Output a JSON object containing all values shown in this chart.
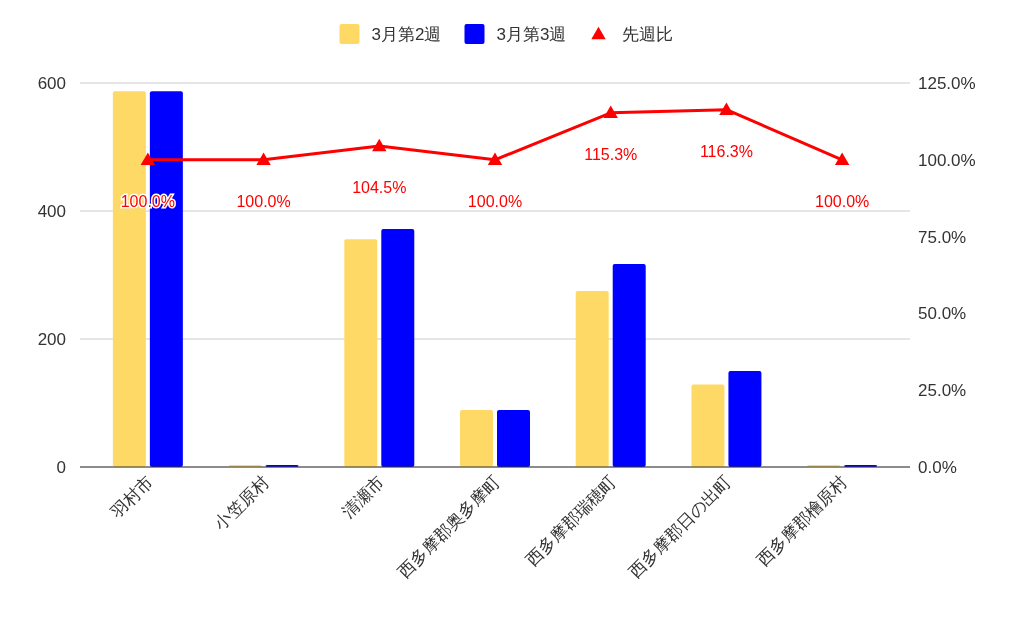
{
  "chart_data": {
    "type": "bar",
    "categories": [
      "羽村市",
      "小笠原村",
      "清瀬市",
      "西多摩郡奥多摩町",
      "西多摩郡瑞穂町",
      "西多摩郡日の出町",
      "西多摩郡檜原村"
    ],
    "series": [
      {
        "name": "3月第2週",
        "color": "#ffd966",
        "values": [
          587,
          3,
          356,
          89,
          275,
          129,
          3
        ]
      },
      {
        "name": "3月第3週",
        "color": "#0000ff",
        "values": [
          587,
          3,
          372,
          89,
          317,
          150,
          3
        ]
      },
      {
        "name": "先週比",
        "type": "line",
        "axis": "y2",
        "color": "#ff0000",
        "marker": "triangle",
        "values": [
          100.0,
          100.0,
          104.5,
          100.0,
          115.3,
          116.3,
          100.0
        ],
        "value_labels": [
          "100.0%",
          "100.0%",
          "104.5%",
          "100.0%",
          "115.3%",
          "116.3%",
          "100.0%"
        ]
      }
    ],
    "ylim": [
      0,
      600
    ],
    "yticks": [
      0,
      200,
      400,
      600
    ],
    "y2lim": [
      0,
      125
    ],
    "y2ticks": [
      {
        "value": 0,
        "label": "0.0%"
      },
      {
        "value": 25,
        "label": "25.0%"
      },
      {
        "value": 50,
        "label": "50.0%"
      },
      {
        "value": 75,
        "label": "75.0%"
      },
      {
        "value": 100,
        "label": "100.0%"
      },
      {
        "value": 125,
        "label": "125.0%"
      }
    ],
    "grid": "y",
    "legend": "top"
  }
}
